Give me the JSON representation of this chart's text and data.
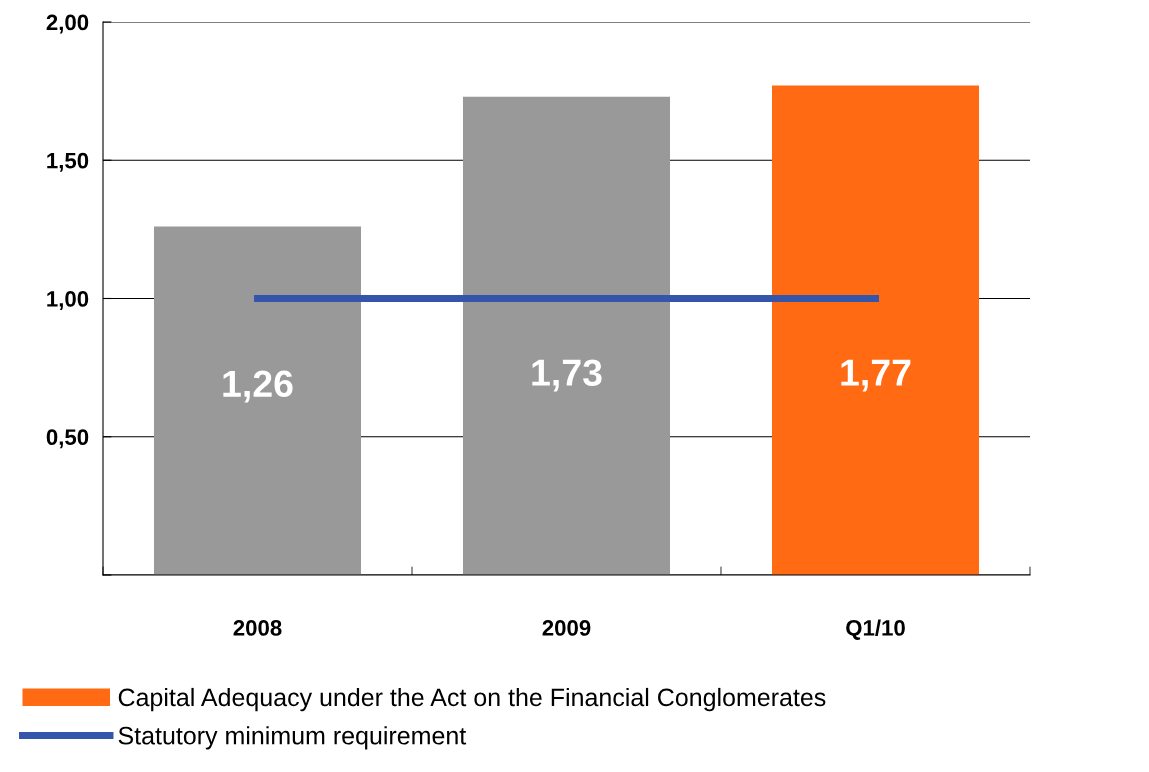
{
  "chart_data": {
    "type": "bar",
    "categories": [
      "2008",
      "2009",
      "Q1/10"
    ],
    "series": [
      {
        "name": "Capital Adequacy under the Act on the Financial Conglomerates",
        "color": "#ff6a13",
        "colors": [
          "#999999",
          "#999999",
          "#ff6a13"
        ],
        "values": [
          1.26,
          1.73,
          1.77
        ],
        "value_labels": [
          "1,26",
          "1,73",
          "1,77"
        ]
      },
      {
        "type": "line",
        "name": "Statutory minimum requirement",
        "color": "#3355aa",
        "values": [
          1.0,
          1.0,
          1.0
        ]
      }
    ],
    "ylim": [
      0,
      2.0
    ],
    "yticks": [
      {
        "value": 0,
        "label": null
      },
      {
        "value": 0.5,
        "label": "0,50"
      },
      {
        "value": 1.0,
        "label": "1,00"
      },
      {
        "value": 1.5,
        "label": "1,50"
      },
      {
        "value": 2.0,
        "label": "2,00"
      }
    ],
    "grid": "y",
    "legend": "bottom"
  }
}
